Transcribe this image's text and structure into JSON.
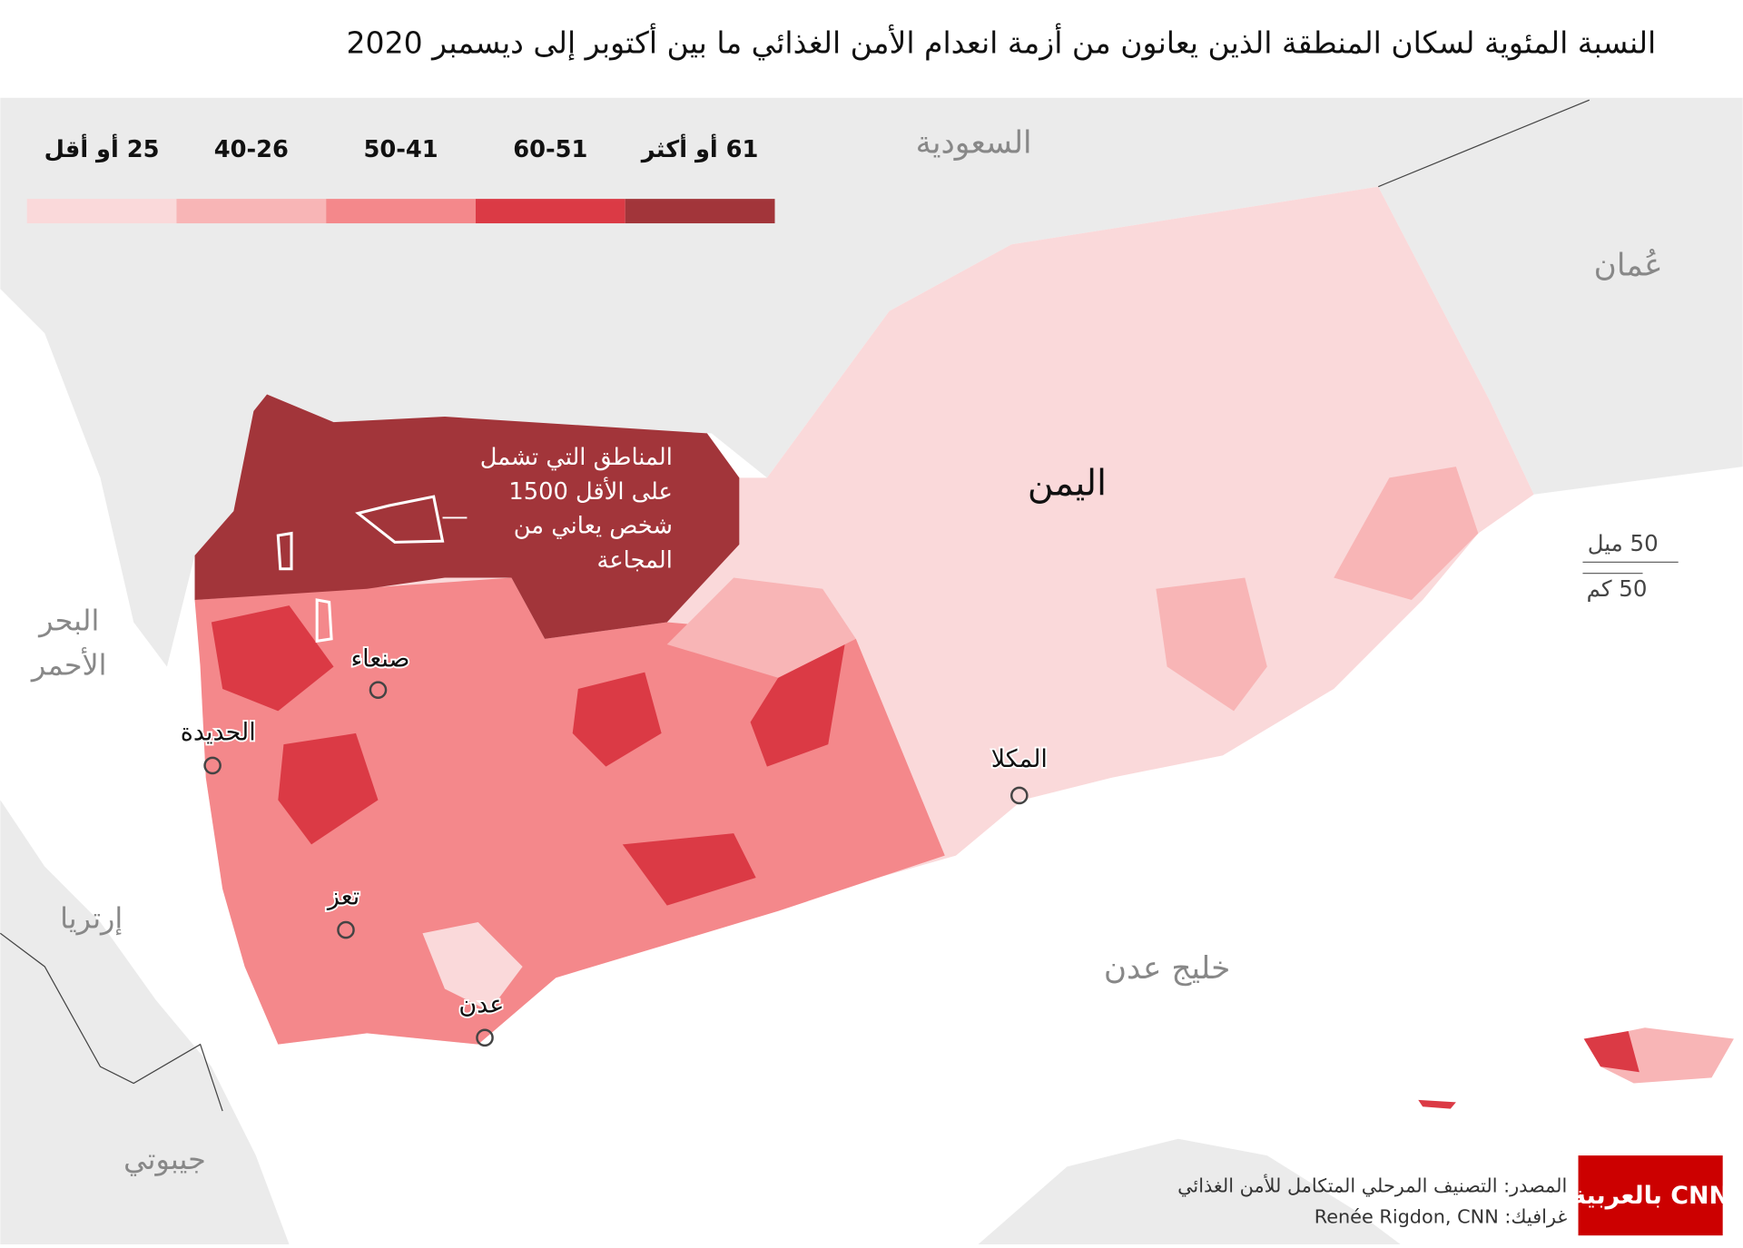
{
  "title": "النسبة المئوية لسكان المنطقة الذين يعانون من أزمة انعدام الأمن الغذائي ما بين أكتوبر إلى ديسمبر 2020",
  "legend": {
    "items": [
      {
        "label": "25 أو أقل",
        "color": "#fad9da"
      },
      {
        "label": "40-26",
        "color": "#f8b5b6"
      },
      {
        "label": "50-41",
        "color": "#f4888b"
      },
      {
        "label": "60-51",
        "color": "#db3a45"
      },
      {
        "label": "61 أو أكثر",
        "color": "#a2353a"
      }
    ]
  },
  "countries": {
    "saudi": "السعودية",
    "oman": "عُمان",
    "yemen": "اليمن",
    "eritrea": "إرتريا",
    "djibouti": "جيبوتي"
  },
  "seas": {
    "red_sea": [
      "البحر",
      "الأحمر"
    ],
    "gulf_of_aden": "خليج عدن"
  },
  "cities": [
    "صنعاء",
    "الحديدة",
    "تعز",
    "عدن",
    "المكلا"
  ],
  "annotation": [
    "المناطق التي تشمل",
    "على الأقل 1500",
    "شخص يعاني من",
    "المجاعة"
  ],
  "scale": {
    "miles": "50 ميل",
    "km": "50 كم"
  },
  "source": "المصدر: التصنيف المرحلي المتكامل للأمن الغذائي",
  "credit": "غرافيك: Renée Rigdon, CNN",
  "logo": "بالعربية CNN"
}
